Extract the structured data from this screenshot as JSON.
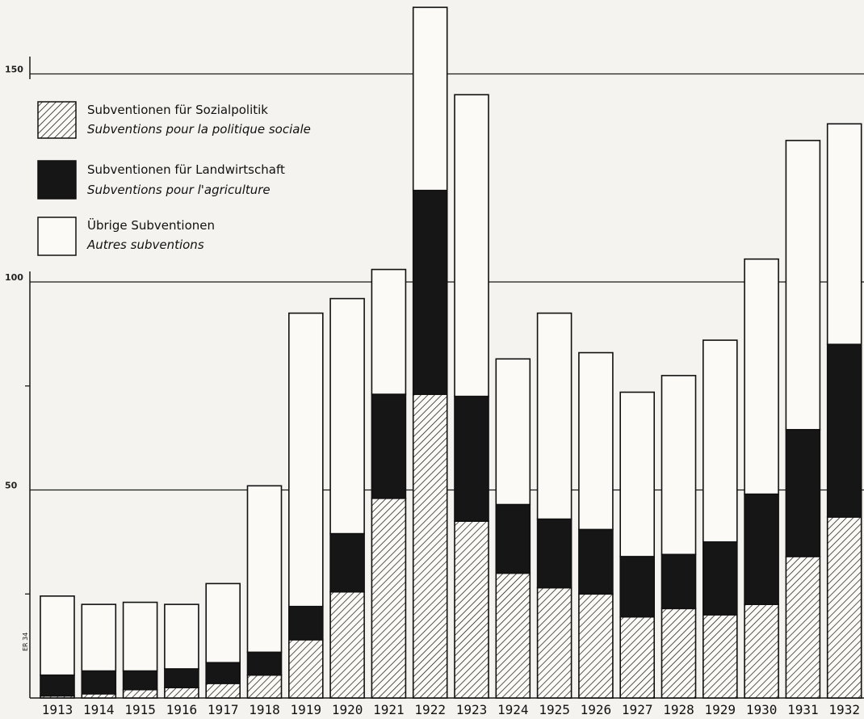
{
  "chart_data": {
    "type": "bar",
    "stacked": true,
    "categories": [
      "1913",
      "1914",
      "1915",
      "1916",
      "1917",
      "1918",
      "1919",
      "1920",
      "1921",
      "1922",
      "1923",
      "1924",
      "1925",
      "1926",
      "1927",
      "1928",
      "1929",
      "1930",
      "1931",
      "1932"
    ],
    "series": [
      {
        "name": "Subventionen für Sozialpolitik",
        "name_fr": "Subventions pour la politique sociale",
        "pattern": "hatched",
        "values": [
          0.5,
          1,
          2,
          2.5,
          3.5,
          5.5,
          14,
          25.5,
          48,
          73,
          42.5,
          30,
          26.5,
          25,
          19.5,
          21.5,
          20,
          22.5,
          34,
          43.5
        ]
      },
      {
        "name": "Subventionen für Landwirtschaft",
        "name_fr": "Subventions pour l'agriculture",
        "pattern": "solid",
        "values": [
          5,
          5.5,
          4.5,
          4.5,
          5,
          5.5,
          8,
          14,
          25,
          49,
          30,
          16.5,
          16.5,
          15.5,
          14.5,
          13,
          17.5,
          26.5,
          30.5,
          41.5
        ]
      },
      {
        "name": "Übrige Subventionen",
        "name_fr": "Autres subventions",
        "pattern": "white",
        "values": [
          19,
          16,
          16.5,
          15.5,
          19,
          40,
          70.5,
          56.5,
          30,
          44,
          72.5,
          35,
          49.5,
          42.5,
          39.5,
          43,
          48.5,
          56.5,
          69.5,
          53
        ]
      }
    ],
    "yticks": [
      50,
      100,
      150
    ],
    "ylim": [
      0,
      168
    ],
    "grid": "horizontal",
    "legend_position": "top-left",
    "signature": "ER 34"
  }
}
